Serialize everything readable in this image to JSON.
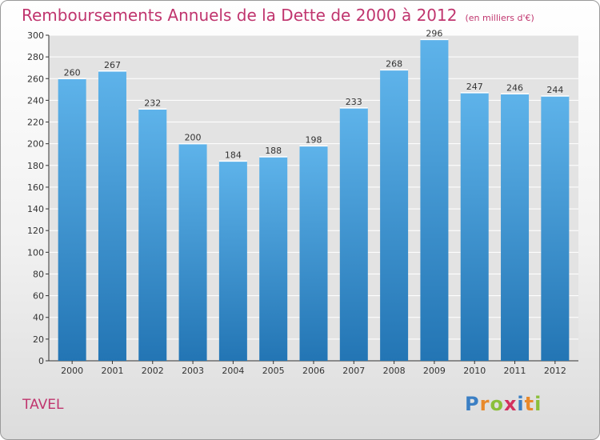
{
  "title": "Remboursements Annuels de la Dette de 2000 à 2012",
  "unit": "(en milliers d'€)",
  "place": "TAVEL",
  "logo": [
    "P",
    "r",
    "o",
    "x",
    "i",
    "t",
    "i"
  ],
  "colors": {
    "title": "#c0356e",
    "bar_top": "#5eb3ea",
    "bar_bottom": "#2375b4",
    "logo": [
      "#3b7fc4",
      "#e8892b",
      "#8bbf3a",
      "#d3315e",
      "#3b7fc4",
      "#e8892b",
      "#8bbf3a"
    ]
  },
  "chart_data": {
    "type": "bar",
    "categories": [
      "2000",
      "2001",
      "2002",
      "2003",
      "2004",
      "2005",
      "2006",
      "2007",
      "2008",
      "2009",
      "2010",
      "2011",
      "2012"
    ],
    "values": [
      260,
      267,
      232,
      200,
      184,
      188,
      198,
      233,
      268,
      296,
      247,
      246,
      244
    ],
    "title": "Remboursements Annuels de la Dette de 2000 à 2012",
    "xlabel": "",
    "ylabel": "",
    "ylim": [
      0,
      300
    ],
    "yticks": [
      0,
      20,
      40,
      60,
      80,
      100,
      120,
      140,
      160,
      180,
      200,
      220,
      240,
      260,
      280,
      300
    ],
    "grid": true,
    "data_labels": true
  }
}
